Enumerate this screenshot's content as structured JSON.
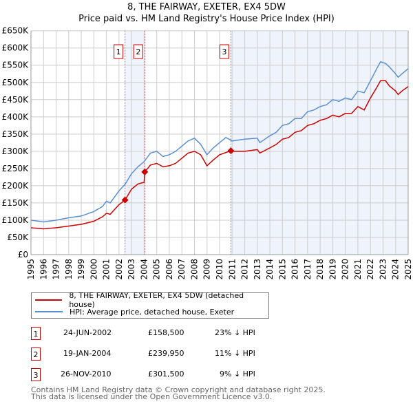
{
  "title": "8, THE FAIRWAY, EXETER, EX4 5DW",
  "subtitle": "Price paid vs. HM Land Registry's House Price Index (HPI)",
  "chart_data": {
    "type": "line",
    "ylim": [
      0,
      650000
    ],
    "xlim": [
      1995,
      2025
    ],
    "y_ticks": [
      0,
      50000,
      100000,
      150000,
      200000,
      250000,
      300000,
      350000,
      400000,
      450000,
      500000,
      550000,
      600000,
      650000
    ],
    "y_tick_labels": [
      "£0",
      "£50K",
      "£100K",
      "£150K",
      "£200K",
      "£250K",
      "£300K",
      "£350K",
      "£400K",
      "£450K",
      "£500K",
      "£550K",
      "£600K",
      "£650K"
    ],
    "x_ticks": [
      "1995",
      "1996",
      "1997",
      "1998",
      "1999",
      "2000",
      "2001",
      "2002",
      "2003",
      "2004",
      "2005",
      "2006",
      "2007",
      "2008",
      "2009",
      "2010",
      "2011",
      "2012",
      "2013",
      "2014",
      "2015",
      "2016",
      "2017",
      "2018",
      "2019",
      "2020",
      "2021",
      "2022",
      "2023",
      "2024",
      "2025"
    ],
    "grid": true,
    "colors": {
      "price": "#cc0000",
      "hpi": "#5b8fd0",
      "shade": "#eef3fc"
    },
    "series": [
      {
        "name": "8, THE FAIRWAY, EXETER, EX4 5DW (detached house)",
        "points": [
          [
            1995,
            78
          ],
          [
            1996,
            75
          ],
          [
            1997,
            78
          ],
          [
            1998,
            83
          ],
          [
            1999,
            88
          ],
          [
            2000,
            97
          ],
          [
            2000.7,
            110
          ],
          [
            2001,
            120
          ],
          [
            2001.3,
            117
          ],
          [
            2002,
            145
          ],
          [
            2002.48,
            158.5
          ],
          [
            2003,
            190
          ],
          [
            2003.5,
            205
          ],
          [
            2004,
            210
          ],
          [
            2004.05,
            239.95
          ],
          [
            2004.5,
            260
          ],
          [
            2005,
            265
          ],
          [
            2005.5,
            255
          ],
          [
            2006,
            258
          ],
          [
            2006.5,
            265
          ],
          [
            2007,
            280
          ],
          [
            2007.5,
            295
          ],
          [
            2008,
            300
          ],
          [
            2008.5,
            290
          ],
          [
            2009,
            258
          ],
          [
            2009.5,
            275
          ],
          [
            2010,
            290
          ],
          [
            2010.9,
            301.5
          ],
          [
            2011,
            300
          ],
          [
            2012,
            300
          ],
          [
            2013,
            305
          ],
          [
            2013.2,
            295
          ],
          [
            2014,
            310
          ],
          [
            2014.5,
            320
          ],
          [
            2015,
            335
          ],
          [
            2015.5,
            340
          ],
          [
            2016,
            355
          ],
          [
            2016.5,
            360
          ],
          [
            2017,
            375
          ],
          [
            2017.5,
            380
          ],
          [
            2018,
            390
          ],
          [
            2018.5,
            395
          ],
          [
            2019,
            405
          ],
          [
            2019.5,
            400
          ],
          [
            2020,
            410
          ],
          [
            2020.5,
            410
          ],
          [
            2021,
            430
          ],
          [
            2021.5,
            420
          ],
          [
            2022,
            455
          ],
          [
            2022.5,
            485
          ],
          [
            2022.8,
            505
          ],
          [
            2023.2,
            505
          ],
          [
            2023.5,
            490
          ],
          [
            2024,
            475
          ],
          [
            2024.2,
            465
          ],
          [
            2024.5,
            475
          ],
          [
            2025,
            488
          ]
        ]
      },
      {
        "name": "HPI: Average price, detached house, Exeter",
        "points": [
          [
            1995,
            100
          ],
          [
            1996,
            95
          ],
          [
            1997,
            100
          ],
          [
            1998,
            107
          ],
          [
            1999,
            112
          ],
          [
            2000,
            125
          ],
          [
            2000.7,
            140
          ],
          [
            2001,
            155
          ],
          [
            2001.3,
            150
          ],
          [
            2002,
            185
          ],
          [
            2002.5,
            205
          ],
          [
            2003,
            235
          ],
          [
            2003.5,
            255
          ],
          [
            2004,
            270
          ],
          [
            2004.5,
            295
          ],
          [
            2005,
            300
          ],
          [
            2005.5,
            285
          ],
          [
            2006,
            290
          ],
          [
            2006.5,
            300
          ],
          [
            2007,
            315
          ],
          [
            2007.5,
            330
          ],
          [
            2008,
            338
          ],
          [
            2008.5,
            320
          ],
          [
            2009,
            290
          ],
          [
            2009.5,
            310
          ],
          [
            2010,
            325
          ],
          [
            2010.5,
            340
          ],
          [
            2011,
            330
          ],
          [
            2012,
            335
          ],
          [
            2013,
            338
          ],
          [
            2013.2,
            325
          ],
          [
            2014,
            345
          ],
          [
            2014.5,
            355
          ],
          [
            2015,
            375
          ],
          [
            2015.5,
            380
          ],
          [
            2016,
            395
          ],
          [
            2016.5,
            395
          ],
          [
            2017,
            415
          ],
          [
            2017.5,
            420
          ],
          [
            2018,
            430
          ],
          [
            2018.5,
            435
          ],
          [
            2019,
            450
          ],
          [
            2019.5,
            445
          ],
          [
            2020,
            455
          ],
          [
            2020.5,
            450
          ],
          [
            2021,
            475
          ],
          [
            2021.5,
            470
          ],
          [
            2022,
            505
          ],
          [
            2022.5,
            540
          ],
          [
            2022.8,
            560
          ],
          [
            2023.2,
            555
          ],
          [
            2023.5,
            545
          ],
          [
            2024,
            525
          ],
          [
            2024.2,
            515
          ],
          [
            2024.5,
            525
          ],
          [
            2025,
            540
          ]
        ]
      }
    ],
    "sales": [
      {
        "label": "1",
        "x": 2002.48,
        "value": 158.5
      },
      {
        "label": "2",
        "x": 2004.05,
        "value": 239.95
      },
      {
        "label": "3",
        "x": 2010.9,
        "value": 301.5
      }
    ],
    "value_units": "thousands GBP"
  },
  "legend": {
    "price": "8, THE FAIRWAY, EXETER, EX4 5DW (detached house)",
    "hpi": "HPI: Average price, detached house, Exeter"
  },
  "transactions": [
    {
      "num": "1",
      "date": "24-JUN-2002",
      "price": "£158,500",
      "delta": "23% ↓ HPI"
    },
    {
      "num": "2",
      "date": "19-JAN-2004",
      "price": "£239,950",
      "delta": "11% ↓ HPI"
    },
    {
      "num": "3",
      "date": "26-NOV-2010",
      "price": "£301,500",
      "delta": "9% ↓ HPI"
    }
  ],
  "footer": {
    "line1": "Contains HM Land Registry data © Crown copyright and database right 2025.",
    "line2": "This data is licensed under the Open Government Licence v3.0."
  }
}
